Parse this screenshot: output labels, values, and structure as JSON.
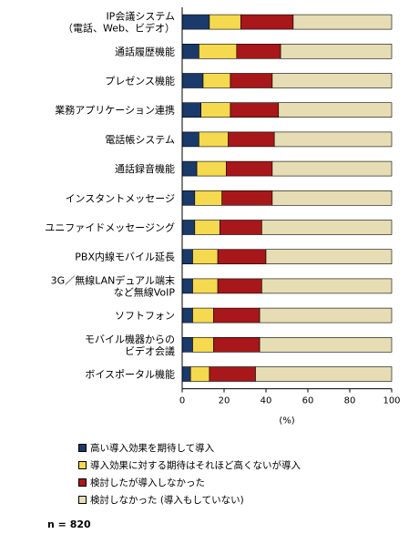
{
  "chart_data": {
    "type": "bar",
    "orientation": "horizontal",
    "stacked": true,
    "categories": [
      [
        "IP会議システム",
        "（電話、Web、ビデオ）"
      ],
      [
        "通話履歴機能"
      ],
      [
        "プレゼンス機能"
      ],
      [
        "業務アプリケーション連携"
      ],
      [
        "電話帳システム"
      ],
      [
        "通話録音機能"
      ],
      [
        "インスタントメッセージ"
      ],
      [
        "ユニファイドメッセージング"
      ],
      [
        "PBX内線モバイル延長"
      ],
      [
        "3G／無線LANデュアル端末",
        "など無線VoIP"
      ],
      [
        "ソフトフォン"
      ],
      [
        "モバイル機器からの",
        "ビデオ会議"
      ],
      [
        "ボイスポータル機能"
      ]
    ],
    "series": [
      {
        "name": "高い導入効果を期待して導入",
        "color": "#1a3a6b",
        "values": [
          13,
          8,
          10,
          9,
          8,
          7,
          6,
          6,
          5,
          5,
          5,
          5,
          4
        ]
      },
      {
        "name": "導入効果に対する期待はそれほど高くないが導入",
        "color": "#f5d94e",
        "values": [
          15,
          18,
          13,
          14,
          14,
          14,
          13,
          12,
          12,
          12,
          10,
          10,
          9
        ]
      },
      {
        "name": "検討したが導入しなかった",
        "color": "#a8171a",
        "values": [
          25,
          21,
          20,
          23,
          22,
          22,
          24,
          20,
          23,
          21,
          22,
          22,
          22
        ]
      },
      {
        "name": "検討しなかった (導入もしていない)",
        "color": "#e6ddb4",
        "values": [
          47,
          53,
          57,
          54,
          56,
          57,
          57,
          62,
          60,
          62,
          63,
          63,
          65
        ]
      }
    ],
    "xlim": [
      0,
      100
    ],
    "xticks": [
      0,
      20,
      40,
      60,
      80,
      100
    ],
    "xlabel": "(%)",
    "grid": false,
    "legend_position": "bottom"
  },
  "note": "n = 820"
}
